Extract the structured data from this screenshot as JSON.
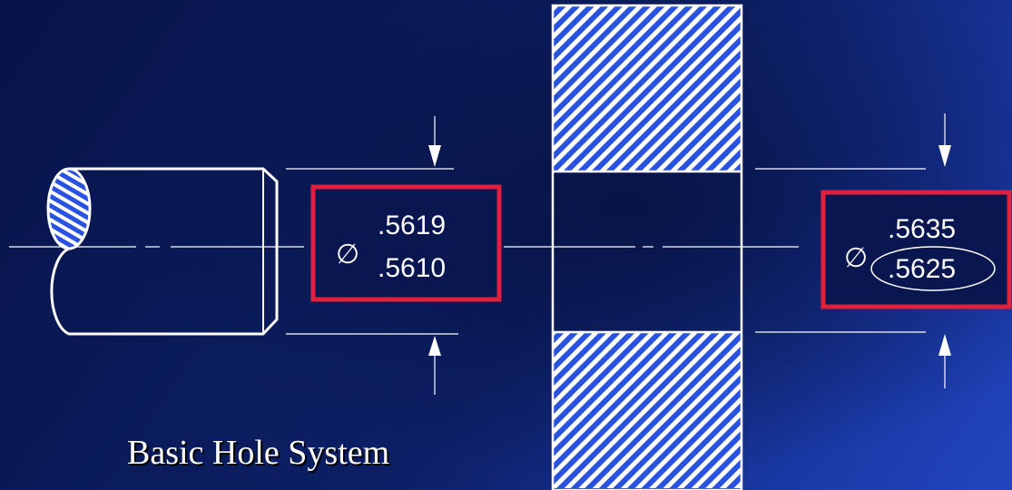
{
  "title": "Basic Hole System",
  "shaft": {
    "diameter_symbol": "∅",
    "max_size": ".5619",
    "min_size": ".5610"
  },
  "hole": {
    "diameter_symbol": "∅",
    "max_size": ".5635",
    "min_size": ".5625",
    "circled_value": ".5625"
  },
  "colors": {
    "background_dark": "#071248",
    "background_light": "#2346c0",
    "highlight_box": "#e0203c",
    "hatch": "#2a52e0",
    "lines": "#ffffff"
  }
}
